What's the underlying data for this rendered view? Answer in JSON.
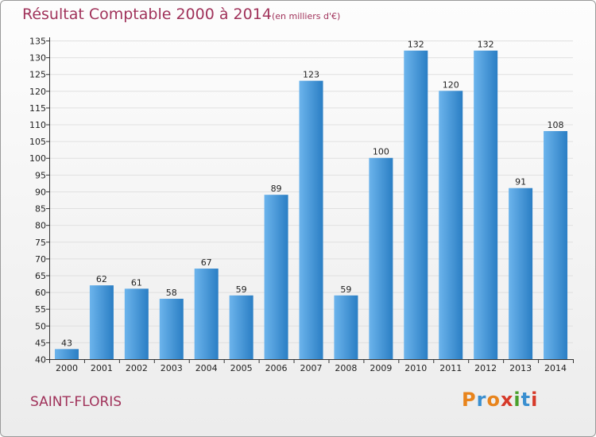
{
  "header": {
    "title": "Résultat Comptable 2000 à 2014",
    "subtitle": "(en milliers d'€)"
  },
  "footer": {
    "commune": "SAINT-FLORIS",
    "logo_text": "Proxiti"
  },
  "colors": {
    "title": "#a0325a",
    "bar_light": "#6cb4ec",
    "bar_dark": "#2a7ec4",
    "grid": "#e0e0e0",
    "axis": "#333333",
    "logo": [
      "#e8841c",
      "#3a8fd0",
      "#e8841c",
      "#d63a2a",
      "#4aa02c",
      "#3a8fd0",
      "#d63a2a"
    ]
  },
  "chart_data": {
    "type": "bar",
    "title": "Résultat Comptable 2000 à 2014",
    "subtitle": "(en milliers d'€)",
    "xlabel": "",
    "ylabel": "",
    "categories": [
      "2000",
      "2001",
      "2002",
      "2003",
      "2004",
      "2005",
      "2006",
      "2007",
      "2008",
      "2009",
      "2010",
      "2011",
      "2012",
      "2013",
      "2014"
    ],
    "values": [
      43,
      62,
      61,
      58,
      67,
      59,
      89,
      123,
      59,
      100,
      132,
      120,
      132,
      91,
      108
    ],
    "ylim": [
      40,
      135
    ],
    "ytick_step": 5,
    "grid": true,
    "legend": "none",
    "data_labels": true
  }
}
